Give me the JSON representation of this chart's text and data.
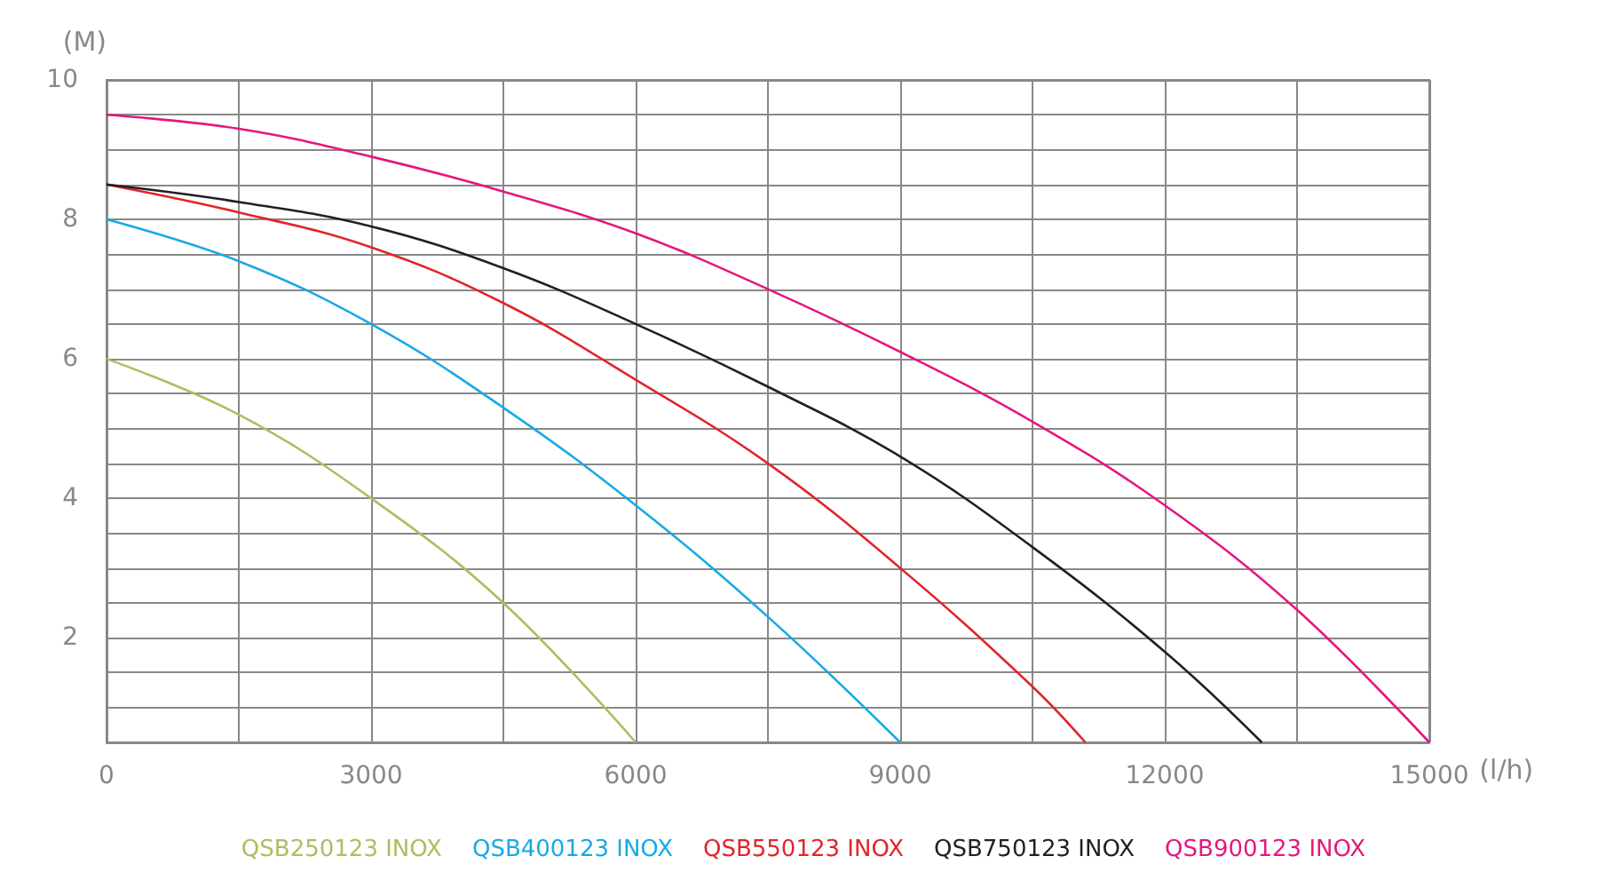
{
  "chart_data": {
    "type": "line",
    "ylabel": "(M)",
    "xlabel": "(l/h)",
    "xlim": [
      0,
      15000
    ],
    "xticks": [
      0,
      {
        "value": 1500,
        "label": null
      },
      3000,
      {
        "value": 4500,
        "label": null
      },
      6000,
      {
        "value": 7500,
        "label": null
      },
      9000,
      {
        "value": 10500,
        "label": null
      },
      12000,
      {
        "value": 13500,
        "label": null
      },
      15000
    ],
    "ylim": [
      0.5,
      10
    ],
    "yticks": [
      {
        "value": 0.5,
        "label": null
      },
      {
        "value": 1,
        "label": null
      },
      {
        "value": 1.5,
        "label": null
      },
      2,
      {
        "value": 2.5,
        "label": null
      },
      {
        "value": 3,
        "label": null
      },
      {
        "value": 3.5,
        "label": null
      },
      4,
      {
        "value": 4.5,
        "label": null
      },
      {
        "value": 5,
        "label": null
      },
      {
        "value": 5.5,
        "label": null
      },
      6,
      {
        "value": 6.5,
        "label": null
      },
      {
        "value": 7,
        "label": null
      },
      {
        "value": 7.5,
        "label": null
      },
      8,
      {
        "value": 8.5,
        "label": null
      },
      {
        "value": 9,
        "label": null
      },
      {
        "value": 9.5,
        "label": null
      },
      10
    ],
    "grid": true,
    "legend": "bottom",
    "marker": "none",
    "line_style": "solid",
    "series": [
      {
        "name": "QSB250123 INOX",
        "color": "#a8c060",
        "x": [
          0,
          1500,
          3000,
          4500,
          6000
        ],
        "values": [
          6,
          5.2,
          4.0,
          2.5,
          0.5
        ]
      },
      {
        "name": "QSB400123 INOX",
        "color": "#19a9e5",
        "x": [
          0,
          1500,
          3000,
          4500,
          6000,
          7500,
          9000
        ],
        "values": [
          8,
          7.4,
          6.5,
          5.3,
          3.9,
          2.3,
          0.5
        ]
      },
      {
        "name": "QSB550123 INOX",
        "color": "#e0262a",
        "x": [
          0,
          1500,
          3000,
          4500,
          6000,
          7500,
          9000,
          10500,
          11100
        ],
        "values": [
          8.5,
          8.1,
          7.6,
          6.8,
          5.7,
          4.5,
          3.0,
          1.3,
          0.5
        ]
      },
      {
        "name": "QSB750123 INOX",
        "color": "#231f20",
        "x": [
          0,
          1500,
          3000,
          4500,
          6000,
          7500,
          9000,
          10500,
          12000,
          13100
        ],
        "values": [
          8.5,
          8.25,
          7.9,
          7.3,
          6.5,
          5.6,
          4.6,
          3.3,
          1.8,
          0.5
        ]
      },
      {
        "name": "QSB900123 INOX",
        "color": "#e5177f",
        "x": [
          0,
          1500,
          3000,
          4500,
          6000,
          7500,
          9000,
          10500,
          12000,
          13500,
          15000
        ],
        "values": [
          9.5,
          9.3,
          8.9,
          8.4,
          7.8,
          7.0,
          6.1,
          5.1,
          3.9,
          2.4,
          0.5
        ]
      }
    ]
  }
}
